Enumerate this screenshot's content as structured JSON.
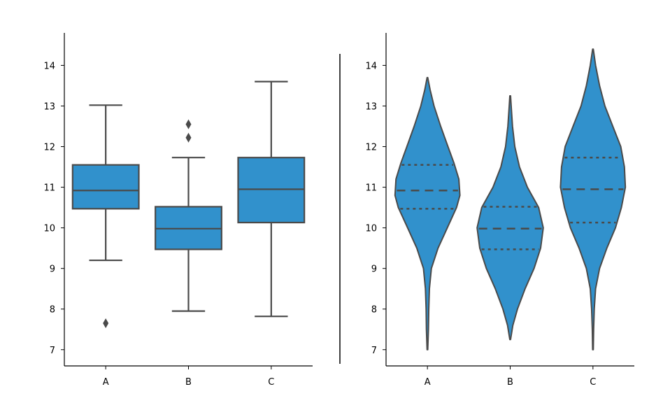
{
  "chart_data": [
    {
      "type": "box",
      "categories": [
        "A",
        "B",
        "C"
      ],
      "ylim": [
        6.6,
        14.8
      ],
      "yticks": [
        "7",
        "8",
        "9",
        "10",
        "11",
        "12",
        "13",
        "14"
      ],
      "boxes": [
        {
          "name": "A",
          "whisker_low": 9.2,
          "q1": 10.47,
          "median": 10.92,
          "q3": 11.55,
          "whisker_high": 13.02,
          "outliers": [
            7.65
          ]
        },
        {
          "name": "B",
          "whisker_low": 7.95,
          "q1": 9.47,
          "median": 9.98,
          "q3": 10.52,
          "whisker_high": 11.73,
          "outliers": [
            12.22,
            12.55
          ]
        },
        {
          "name": "C",
          "whisker_low": 7.82,
          "q1": 10.13,
          "median": 10.95,
          "q3": 11.73,
          "whisker_high": 13.6,
          "outliers": []
        }
      ],
      "color": "#3191cc"
    },
    {
      "type": "violin",
      "categories": [
        "A",
        "B",
        "C"
      ],
      "ylim": [
        6.6,
        14.8
      ],
      "yticks": [
        "7",
        "8",
        "9",
        "10",
        "11",
        "12",
        "13",
        "14"
      ],
      "violins": [
        {
          "name": "A",
          "min": 7.0,
          "max": 13.7,
          "q1": 10.47,
          "median": 10.92,
          "q3": 11.55,
          "profile": [
            [
              7.0,
              0.01
            ],
            [
              7.5,
              0.03
            ],
            [
              8.0,
              0.04
            ],
            [
              8.5,
              0.06
            ],
            [
              9.0,
              0.12
            ],
            [
              9.5,
              0.32
            ],
            [
              10.0,
              0.6
            ],
            [
              10.5,
              0.88
            ],
            [
              10.8,
              0.98
            ],
            [
              11.2,
              0.95
            ],
            [
              11.6,
              0.8
            ],
            [
              12.0,
              0.62
            ],
            [
              12.5,
              0.4
            ],
            [
              13.0,
              0.2
            ],
            [
              13.4,
              0.08
            ],
            [
              13.7,
              0.01
            ]
          ]
        },
        {
          "name": "B",
          "min": 7.25,
          "max": 13.25,
          "q1": 9.47,
          "median": 9.98,
          "q3": 10.52,
          "profile": [
            [
              7.25,
              0.01
            ],
            [
              7.6,
              0.08
            ],
            [
              8.0,
              0.22
            ],
            [
              8.5,
              0.45
            ],
            [
              9.0,
              0.72
            ],
            [
              9.5,
              0.92
            ],
            [
              10.0,
              1.0
            ],
            [
              10.5,
              0.86
            ],
            [
              11.0,
              0.52
            ],
            [
              11.5,
              0.28
            ],
            [
              12.0,
              0.14
            ],
            [
              12.5,
              0.07
            ],
            [
              13.0,
              0.03
            ],
            [
              13.25,
              0.01
            ]
          ]
        },
        {
          "name": "C",
          "min": 7.0,
          "max": 14.4,
          "q1": 10.13,
          "median": 10.95,
          "q3": 11.73,
          "profile": [
            [
              7.0,
              0.01
            ],
            [
              7.5,
              0.02
            ],
            [
              8.0,
              0.04
            ],
            [
              8.5,
              0.08
            ],
            [
              9.0,
              0.2
            ],
            [
              9.5,
              0.42
            ],
            [
              10.0,
              0.68
            ],
            [
              10.5,
              0.86
            ],
            [
              11.0,
              0.98
            ],
            [
              11.5,
              0.95
            ],
            [
              12.0,
              0.84
            ],
            [
              12.5,
              0.6
            ],
            [
              13.0,
              0.36
            ],
            [
              13.5,
              0.2
            ],
            [
              14.0,
              0.08
            ],
            [
              14.4,
              0.01
            ]
          ]
        }
      ],
      "color": "#3191cc"
    }
  ]
}
